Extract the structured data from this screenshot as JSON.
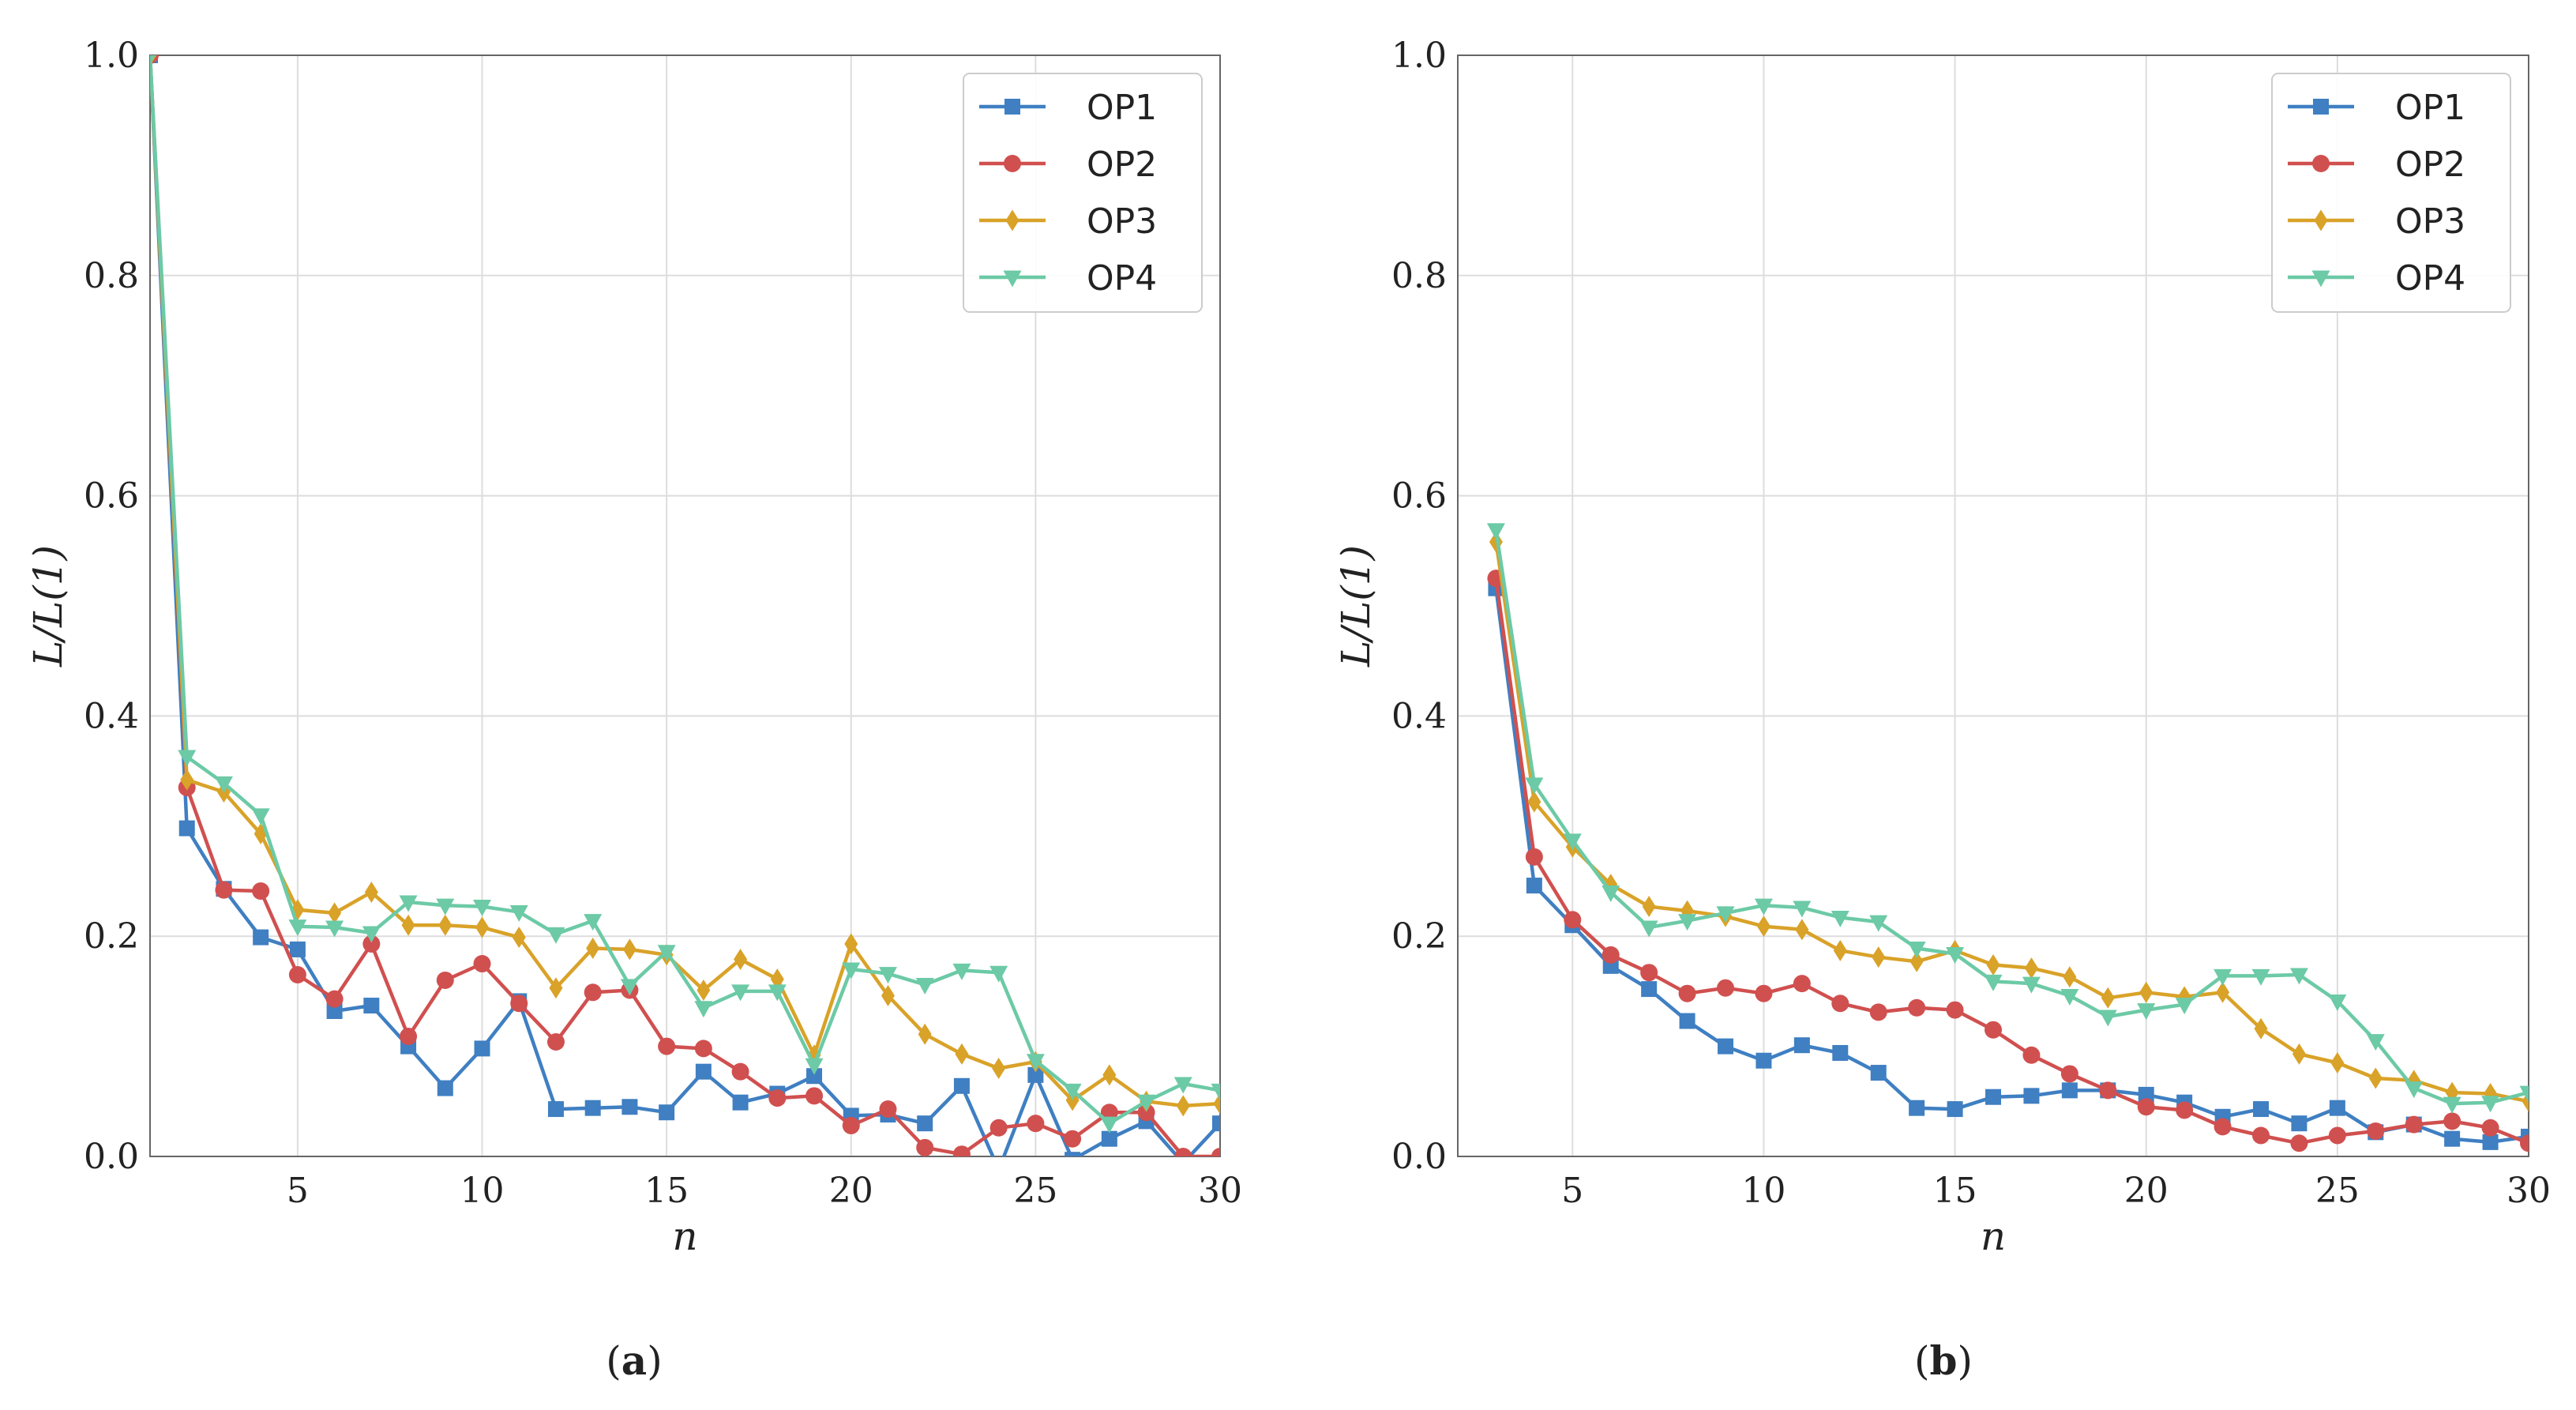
{
  "colors": {
    "OP1": "#3f7fc2",
    "OP2": "#d0504f",
    "OP3": "#d9a228",
    "OP4": "#6ccaa6",
    "grid": "#dddddd",
    "frame": "#666666"
  },
  "chart_data": [
    {
      "type": "line",
      "panel": "a",
      "caption_open": "(",
      "caption_letter": "a",
      "caption_close": ")",
      "xlabel": "n",
      "ylabel": "L/L(1)",
      "xlim": [
        1,
        30
      ],
      "ylim": [
        0.0,
        1.0
      ],
      "xticks": [
        5,
        10,
        15,
        20,
        25,
        30
      ],
      "xtick_labels": [
        "5",
        "10",
        "15",
        "20",
        "25",
        "30"
      ],
      "yticks": [
        0.0,
        0.2,
        0.4,
        0.6,
        0.8,
        1.0
      ],
      "ytick_labels": [
        "0.0",
        "0.2",
        "0.4",
        "0.6",
        "0.8",
        "1.0"
      ],
      "grid": true,
      "legend_position": "top-right",
      "x": [
        1,
        2,
        3,
        4,
        5,
        6,
        7,
        8,
        9,
        10,
        11,
        12,
        13,
        14,
        15,
        16,
        17,
        18,
        19,
        20,
        21,
        22,
        23,
        24,
        25,
        26,
        27,
        28,
        29,
        30
      ],
      "series": [
        {
          "name": "OP1",
          "marker": "square",
          "values": [
            1.0,
            0.298,
            0.243,
            0.199,
            0.188,
            0.132,
            0.137,
            0.1,
            0.062,
            0.098,
            0.141,
            0.043,
            0.044,
            0.045,
            0.04,
            0.077,
            0.049,
            0.057,
            0.073,
            0.037,
            0.038,
            0.03,
            0.064,
            -0.012,
            0.074,
            -0.003,
            0.016,
            0.032,
            -0.006,
            0.03
          ]
        },
        {
          "name": "OP2",
          "marker": "circle",
          "values": [
            1.0,
            0.335,
            0.242,
            0.241,
            0.165,
            0.143,
            0.193,
            0.109,
            0.16,
            0.175,
            0.139,
            0.104,
            0.149,
            0.151,
            0.1,
            0.098,
            0.077,
            0.053,
            0.055,
            0.028,
            0.043,
            0.008,
            0.002,
            0.026,
            0.03,
            0.016,
            0.04,
            0.04,
            0.0,
            0.0
          ]
        },
        {
          "name": "OP3",
          "marker": "diamond",
          "values": [
            1.0,
            0.342,
            0.331,
            0.293,
            0.224,
            0.221,
            0.24,
            0.21,
            0.21,
            0.208,
            0.199,
            0.153,
            0.189,
            0.188,
            0.183,
            0.151,
            0.179,
            0.161,
            0.092,
            0.193,
            0.146,
            0.111,
            0.093,
            0.08,
            0.086,
            0.051,
            0.074,
            0.05,
            0.046,
            0.048
          ]
        },
        {
          "name": "OP4",
          "marker": "triangle-down",
          "values": [
            1.0,
            0.363,
            0.339,
            0.31,
            0.209,
            0.208,
            0.203,
            0.231,
            0.228,
            0.227,
            0.222,
            0.202,
            0.214,
            0.155,
            0.186,
            0.135,
            0.15,
            0.15,
            0.083,
            0.17,
            0.166,
            0.156,
            0.169,
            0.167,
            0.087,
            0.06,
            0.03,
            0.05,
            0.066,
            0.06
          ]
        }
      ]
    },
    {
      "type": "line",
      "panel": "b",
      "caption_open": "(",
      "caption_letter": "b",
      "caption_close": ")",
      "xlabel": "n",
      "ylabel": "L/L(1)",
      "xlim": [
        2,
        30
      ],
      "ylim": [
        0.0,
        1.0
      ],
      "xticks": [
        5,
        10,
        15,
        20,
        25,
        30
      ],
      "xtick_labels": [
        "5",
        "10",
        "15",
        "20",
        "25",
        "30"
      ],
      "yticks": [
        0.0,
        0.2,
        0.4,
        0.6,
        0.8,
        1.0
      ],
      "ytick_labels": [
        "0.0",
        "0.2",
        "0.4",
        "0.6",
        "0.8",
        "1.0"
      ],
      "grid": true,
      "legend_position": "top-right",
      "x": [
        3,
        4,
        5,
        6,
        7,
        8,
        9,
        10,
        11,
        12,
        13,
        14,
        15,
        16,
        17,
        18,
        19,
        20,
        21,
        22,
        23,
        24,
        25,
        26,
        27,
        28,
        29,
        30
      ],
      "series": [
        {
          "name": "OP1",
          "marker": "square",
          "values": [
            0.516,
            0.246,
            0.21,
            0.173,
            0.152,
            0.123,
            0.1,
            0.087,
            0.101,
            0.094,
            0.076,
            0.044,
            0.043,
            0.054,
            0.055,
            0.06,
            0.06,
            0.056,
            0.049,
            0.036,
            0.043,
            0.03,
            0.044,
            0.022,
            0.029,
            0.016,
            0.013,
            0.018
          ]
        },
        {
          "name": "OP2",
          "marker": "circle",
          "values": [
            0.525,
            0.272,
            0.215,
            0.183,
            0.167,
            0.148,
            0.153,
            0.148,
            0.157,
            0.139,
            0.131,
            0.135,
            0.133,
            0.115,
            0.092,
            0.075,
            0.06,
            0.045,
            0.042,
            0.027,
            0.019,
            0.012,
            0.019,
            0.023,
            0.029,
            0.032,
            0.026,
            0.012
          ]
        },
        {
          "name": "OP3",
          "marker": "diamond",
          "values": [
            0.558,
            0.322,
            0.281,
            0.247,
            0.227,
            0.223,
            0.218,
            0.209,
            0.206,
            0.187,
            0.181,
            0.177,
            0.187,
            0.174,
            0.171,
            0.163,
            0.144,
            0.149,
            0.145,
            0.149,
            0.116,
            0.093,
            0.085,
            0.071,
            0.069,
            0.058,
            0.057,
            0.05
          ]
        },
        {
          "name": "OP4",
          "marker": "triangle-down",
          "values": [
            0.569,
            0.338,
            0.287,
            0.24,
            0.208,
            0.214,
            0.221,
            0.228,
            0.226,
            0.217,
            0.213,
            0.189,
            0.184,
            0.159,
            0.157,
            0.146,
            0.127,
            0.133,
            0.138,
            0.164,
            0.164,
            0.165,
            0.141,
            0.105,
            0.062,
            0.048,
            0.049,
            0.058
          ]
        }
      ]
    }
  ]
}
